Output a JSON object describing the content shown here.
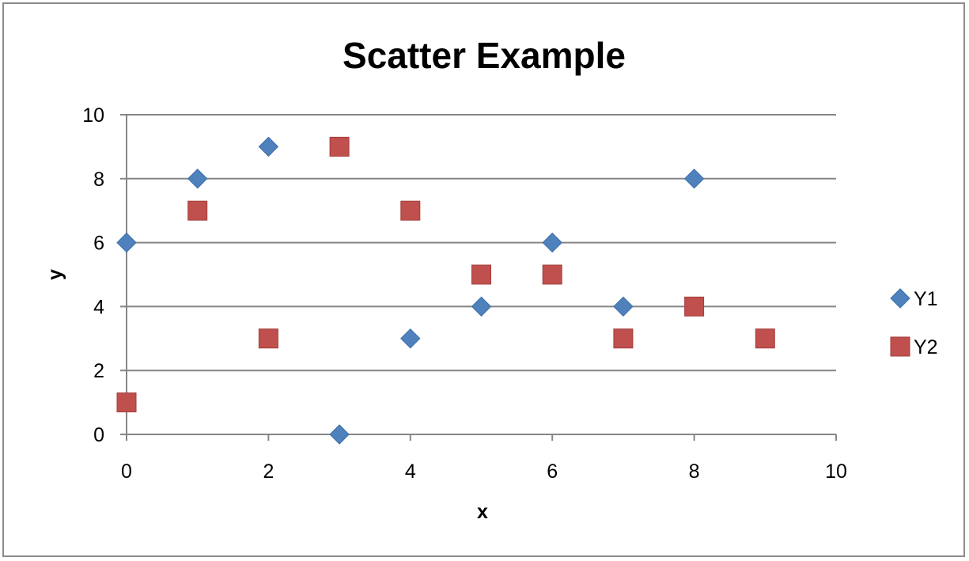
{
  "chart_data": {
    "type": "scatter",
    "title": "Scatter Example",
    "xlabel": "x",
    "ylabel": "y",
    "xlim": [
      0,
      10
    ],
    "ylim": [
      0,
      10
    ],
    "xticks": [
      "0",
      "2",
      "4",
      "6",
      "8",
      "10"
    ],
    "yticks": [
      "0",
      "2",
      "4",
      "6",
      "8",
      "10"
    ],
    "grid": "horizontal",
    "legend_position": "right",
    "series": [
      {
        "name": "Y1",
        "marker": "diamond",
        "color": "#4f81bd",
        "x": [
          0,
          1,
          2,
          3,
          4,
          5,
          6,
          7,
          8
        ],
        "y": [
          6,
          8,
          9,
          0,
          3,
          4,
          6,
          4,
          8
        ]
      },
      {
        "name": "Y2",
        "marker": "square",
        "color": "#c0504d",
        "x": [
          0,
          1,
          2,
          3,
          4,
          5,
          6,
          7,
          8,
          9
        ],
        "y": [
          1,
          7,
          3,
          9,
          7,
          5,
          5,
          3,
          4,
          3
        ]
      }
    ]
  }
}
